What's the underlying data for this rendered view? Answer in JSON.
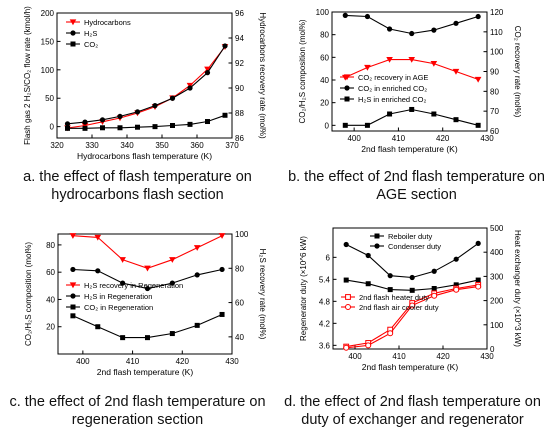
{
  "captions": {
    "a": "a. the effect of flash temperature on hydrocarbons flash section",
    "b": "b. the effect of 2nd flash temperature on AGE section",
    "c": "c. the effect of 2nd flash temperature on regeneration section",
    "d": "d. the effect of 2nd flash temperature on duty of exchanger and regenerator"
  },
  "colors": {
    "black": "#000000",
    "red": "#ff0000"
  },
  "chart_data": [
    {
      "id": "a",
      "type": "line",
      "xlabel": "Hydrocarbons flash temperature (K)",
      "ylabel_left": "Flash gas 2 H2S/CO2 flow rate (kmol/h)",
      "ylabel_right": "Hydrocarbons recovery rate (mol%)",
      "xlim": [
        320,
        370
      ],
      "ylim_left": [
        -20,
        200
      ],
      "ylim_right": [
        86,
        96
      ],
      "xticks": [
        320,
        330,
        340,
        350,
        360,
        370
      ],
      "yticks_left": [
        0,
        50,
        100,
        150,
        200
      ],
      "yticks_right": [
        86,
        88,
        90,
        92,
        94,
        96
      ],
      "legend_position": "top-left",
      "series": [
        {
          "name": "Hydrocarbons",
          "axis": "right",
          "color": "#ff0000",
          "marker": "triangle-down",
          "x": [
            323,
            328,
            333,
            338,
            343,
            348,
            353,
            358,
            363,
            368
          ],
          "y": [
            86.8,
            87.0,
            87.3,
            87.6,
            88.0,
            88.5,
            89.2,
            90.2,
            91.5,
            93.3
          ]
        },
        {
          "name": "H2S",
          "axis": "left",
          "color": "#000000",
          "marker": "circle",
          "x": [
            323,
            328,
            333,
            338,
            343,
            348,
            353,
            358,
            363,
            368
          ],
          "y": [
            5,
            8,
            12,
            18,
            26,
            37,
            50,
            68,
            95,
            142
          ]
        },
        {
          "name": "CO2",
          "axis": "left",
          "color": "#000000",
          "marker": "square",
          "x": [
            323,
            328,
            333,
            338,
            343,
            348,
            353,
            358,
            363,
            368
          ],
          "y": [
            -3,
            -3,
            -2,
            -2,
            -1,
            0,
            2,
            4,
            9,
            20
          ]
        }
      ]
    },
    {
      "id": "b",
      "type": "line",
      "xlabel": "2nd flash temperature (K)",
      "ylabel_left": "CO2/H2S composition (mol%)",
      "ylabel_right": "CO2 recovery rate (mol%)",
      "xlim": [
        395,
        430
      ],
      "ylim_left": [
        -5,
        100
      ],
      "ylim_right": [
        60,
        120
      ],
      "xticks": [
        400,
        410,
        420,
        430
      ],
      "yticks_left": [
        0,
        20,
        40,
        60,
        80,
        100
      ],
      "yticks_right": [
        60,
        70,
        80,
        90,
        100,
        110,
        120
      ],
      "legend_position": "center",
      "series": [
        {
          "name": "CO2 recovery in AGE",
          "axis": "right",
          "color": "#ff0000",
          "marker": "triangle-down",
          "x": [
            398,
            403,
            408,
            413,
            418,
            423,
            428
          ],
          "y": [
            87,
            92,
            96,
            96,
            94,
            90,
            86
          ]
        },
        {
          "name": "CO2 in enriched CO2",
          "axis": "left",
          "color": "#000000",
          "marker": "circle",
          "x": [
            398,
            403,
            408,
            413,
            418,
            423,
            428
          ],
          "y": [
            97,
            96,
            85,
            81,
            84,
            90,
            96
          ]
        },
        {
          "name": "H2S in enriched CO2",
          "axis": "left",
          "color": "#000000",
          "marker": "square",
          "x": [
            398,
            403,
            408,
            413,
            418,
            423,
            428
          ],
          "y": [
            0,
            0,
            10,
            14,
            10,
            5,
            0
          ]
        }
      ]
    },
    {
      "id": "c",
      "type": "line",
      "xlabel": "2nd flash temperature (K)",
      "ylabel_left": "CO2/H2S composition (mol%)",
      "ylabel_right": "H2S recovery rate (mol%)",
      "xlim": [
        395,
        430
      ],
      "ylim_left": [
        0,
        88
      ],
      "ylim_right": [
        30,
        100
      ],
      "xticks": [
        400,
        410,
        420,
        430
      ],
      "yticks_left": [
        20,
        40,
        60,
        80
      ],
      "yticks_right": [
        40,
        60,
        80,
        100
      ],
      "legend_position": "center-left",
      "series": [
        {
          "name": "H2S recovery in Regeneration",
          "axis": "right",
          "color": "#ff0000",
          "marker": "triangle-down",
          "x": [
            398,
            403,
            408,
            413,
            418,
            423,
            428
          ],
          "y": [
            99,
            98,
            85,
            80,
            85,
            92,
            99
          ]
        },
        {
          "name": "H2S in Regeneration",
          "axis": "left",
          "color": "#000000",
          "marker": "circle",
          "x": [
            398,
            403,
            408,
            413,
            418,
            423,
            428
          ],
          "y": [
            62,
            61,
            52,
            48,
            52,
            58,
            62
          ]
        },
        {
          "name": "CO2 in Regeneration",
          "axis": "left",
          "color": "#000000",
          "marker": "square",
          "x": [
            398,
            403,
            408,
            413,
            418,
            423,
            428
          ],
          "y": [
            28,
            20,
            12,
            12,
            15,
            21,
            29
          ]
        }
      ]
    },
    {
      "id": "d",
      "type": "line",
      "xlabel": "2nd flash temperature (K)",
      "ylabel_left": "Regenerator duty (×10^6 kW)",
      "ylabel_right": "Heat exchanger duty (×10^3 kW)",
      "xlim": [
        395,
        430
      ],
      "ylim_left": [
        3.5,
        6.8
      ],
      "ylim_right": [
        0,
        500
      ],
      "xticks": [
        400,
        410,
        420,
        430
      ],
      "yticks_left": [
        3.6,
        4.2,
        4.8,
        5.4,
        6.0
      ],
      "yticks_right": [
        0,
        100,
        200,
        300,
        400,
        500
      ],
      "legend_position": "top-left and bottom-left",
      "series": [
        {
          "name": "Reboiler duty",
          "axis": "left",
          "color": "#000000",
          "marker": "square",
          "x": [
            398,
            403,
            408,
            413,
            418,
            423,
            428
          ],
          "y": [
            5.38,
            5.28,
            5.12,
            5.1,
            5.15,
            5.25,
            5.38
          ]
        },
        {
          "name": "Condenser duty",
          "axis": "left",
          "color": "#000000",
          "marker": "circle",
          "x": [
            398,
            403,
            408,
            413,
            418,
            423,
            428
          ],
          "y": [
            6.35,
            6.05,
            5.5,
            5.45,
            5.62,
            5.95,
            6.38
          ]
        },
        {
          "name": "2nd flash heater duty",
          "axis": "right",
          "color": "#ff0000",
          "marker": "square-open",
          "x": [
            398,
            403,
            408,
            413,
            418,
            423,
            428
          ],
          "y": [
            10,
            25,
            80,
            190,
            230,
            250,
            265
          ]
        },
        {
          "name": "2nd flash air cooler duty",
          "axis": "right",
          "color": "#ff0000",
          "marker": "circle-open",
          "x": [
            398,
            403,
            408,
            413,
            418,
            423,
            428
          ],
          "y": [
            5,
            15,
            65,
            180,
            220,
            245,
            258
          ]
        }
      ]
    }
  ]
}
